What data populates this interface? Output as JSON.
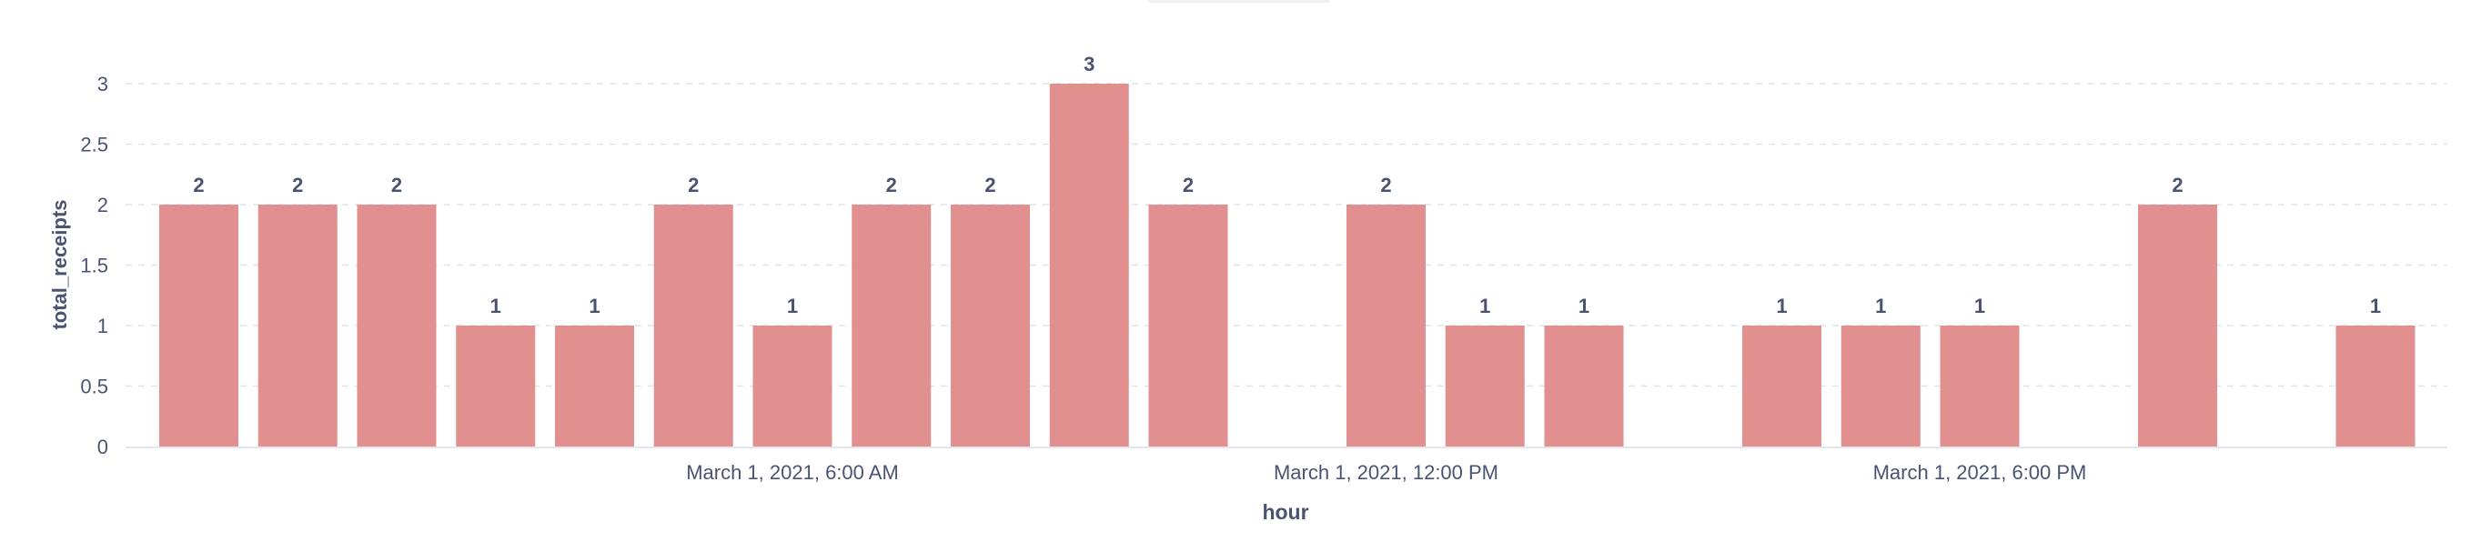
{
  "chart_data": {
    "type": "bar",
    "xlabel": "hour",
    "ylabel": "total_receipts",
    "ylim": [
      0,
      3
    ],
    "yticks": [
      "0",
      "0.5",
      "1",
      "1.5",
      "2",
      "2.5",
      "3"
    ],
    "y_tick_values": [
      0,
      0.5,
      1,
      1.5,
      2,
      2.5,
      3
    ],
    "x_tick_labels": [
      {
        "label": "March 1, 2021, 6:00 AM",
        "hour": "2021-03-01 06:00"
      },
      {
        "label": "March 1, 2021, 12:00 PM",
        "hour": "2021-03-01 12:00"
      },
      {
        "label": "March 1, 2021, 6:00 PM",
        "hour": "2021-03-01 18:00"
      }
    ],
    "x": [
      "2021-03-01 00:00",
      "2021-03-01 01:00",
      "2021-03-01 02:00",
      "2021-03-01 03:00",
      "2021-03-01 04:00",
      "2021-03-01 05:00",
      "2021-03-01 06:00",
      "2021-03-01 07:00",
      "2021-03-01 08:00",
      "2021-03-01 09:00",
      "2021-03-01 10:00",
      "2021-03-01 11:00",
      "2021-03-01 12:00",
      "2021-03-01 13:00",
      "2021-03-01 14:00",
      "2021-03-01 15:00",
      "2021-03-01 16:00",
      "2021-03-01 17:00",
      "2021-03-01 18:00",
      "2021-03-01 19:00",
      "2021-03-01 20:00",
      "2021-03-01 21:00",
      "2021-03-01 22:00",
      "2021-03-01 23:00"
    ],
    "values": [
      2,
      2,
      2,
      1,
      1,
      2,
      1,
      2,
      2,
      3,
      2,
      null,
      2,
      1,
      1,
      null,
      1,
      1,
      1,
      null,
      2,
      null,
      1,
      null
    ],
    "grid": true,
    "bar_color": "#e28f8f",
    "text_color": "#4a5472",
    "grid_color": "#dfe3ea"
  }
}
